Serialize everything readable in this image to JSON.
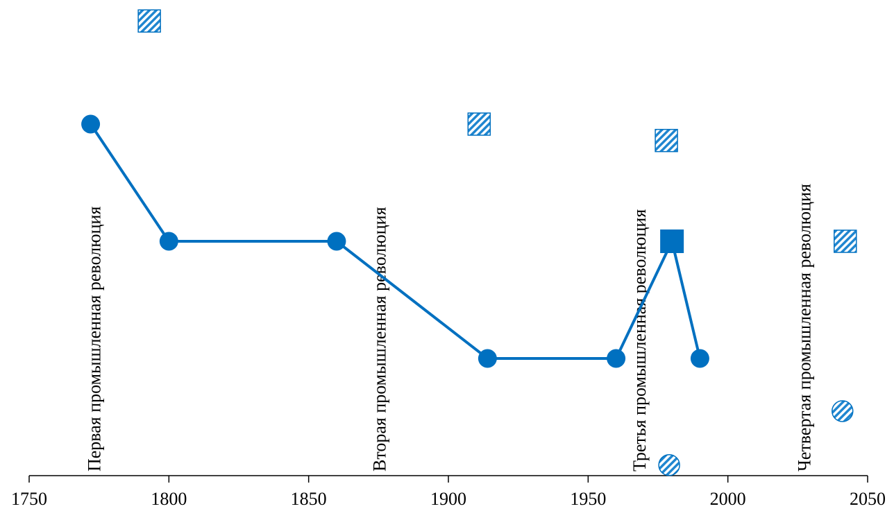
{
  "chart_data": {
    "type": "line",
    "xlim": [
      1750,
      2050
    ],
    "xticks": [
      1750,
      1800,
      1850,
      1900,
      1950,
      2000,
      2050
    ],
    "ylim": [
      0,
      4
    ],
    "color": "#0070c0",
    "series": [
      {
        "type": "line",
        "color": "#0070c0",
        "x": [
          1772,
          1800,
          1860,
          1914,
          1960,
          1980,
          1990
        ],
        "values": [
          3,
          2,
          2,
          1,
          1,
          2,
          1
        ],
        "markers": [
          "circle",
          "circle",
          "circle",
          "circle",
          "circle",
          "square",
          "circle"
        ]
      },
      {
        "type": "scatter",
        "color": "#0070c0",
        "marker": "square",
        "hatched": true,
        "x": [
          1793,
          1911,
          1978,
          2042
        ],
        "values": [
          3.88,
          3,
          2.86,
          2
        ]
      },
      {
        "type": "scatter",
        "color": "#0070c0",
        "marker": "circle",
        "hatched": true,
        "x": [
          1979,
          2041
        ],
        "values": [
          0.09,
          0.55
        ]
      }
    ],
    "annotations": [
      {
        "text": "Первая промышленная революция",
        "x": 1774
      },
      {
        "text": "Вторая промышленная революция",
        "x": 1876
      },
      {
        "text": "Третья промышленная революция",
        "x": 1969
      },
      {
        "text": "Четвертая промышленная революция",
        "x": 2028
      }
    ]
  }
}
